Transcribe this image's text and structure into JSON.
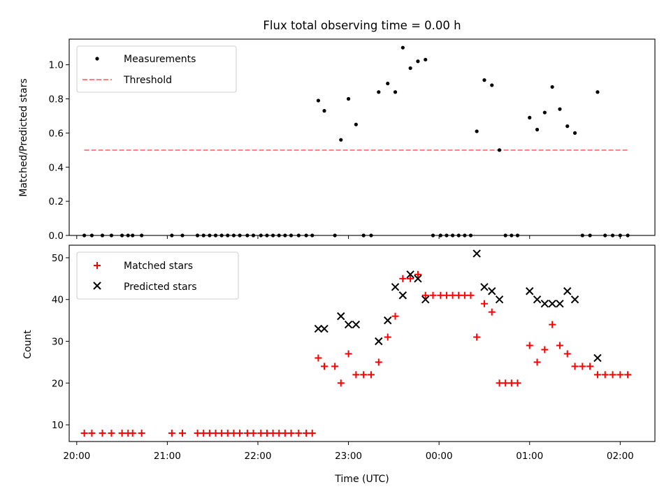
{
  "chart_data": [
    {
      "type": "scatter",
      "title": "Flux total observing time = 0.00 h",
      "xlabel": "",
      "ylabel": "Matched/Predicted stars",
      "ylim": [
        0,
        1.15
      ],
      "yticks": [
        "0.0",
        "0.2",
        "0.4",
        "0.6",
        "0.8",
        "1.0"
      ],
      "legend_position": "top-left",
      "series": [
        {
          "name": "Measurements",
          "color": "#000000",
          "marker": "dot",
          "points": [
            [
              "20:05",
              0
            ],
            [
              "20:10",
              0
            ],
            [
              "20:17",
              0
            ],
            [
              "20:23",
              0
            ],
            [
              "20:30",
              0
            ],
            [
              "20:34",
              0
            ],
            [
              "20:37",
              0
            ],
            [
              "20:43",
              0
            ],
            [
              "21:03",
              0
            ],
            [
              "21:10",
              0
            ],
            [
              "21:20",
              0
            ],
            [
              "21:24",
              0
            ],
            [
              "21:28",
              0
            ],
            [
              "21:32",
              0
            ],
            [
              "21:36",
              0
            ],
            [
              "21:40",
              0
            ],
            [
              "21:44",
              0
            ],
            [
              "21:48",
              0
            ],
            [
              "21:53",
              0
            ],
            [
              "21:57",
              0
            ],
            [
              "22:02",
              0
            ],
            [
              "22:06",
              0
            ],
            [
              "22:10",
              0
            ],
            [
              "22:14",
              0
            ],
            [
              "22:18",
              0
            ],
            [
              "22:22",
              0
            ],
            [
              "22:27",
              0
            ],
            [
              "22:32",
              0
            ],
            [
              "22:36",
              0
            ],
            [
              "22:40",
              0.79
            ],
            [
              "22:44",
              0.73
            ],
            [
              "22:51",
              0
            ],
            [
              "22:55",
              0.56
            ],
            [
              "23:00",
              0.8
            ],
            [
              "23:05",
              0.65
            ],
            [
              "23:10",
              0
            ],
            [
              "23:15",
              0
            ],
            [
              "23:20",
              0.84
            ],
            [
              "23:26",
              0.89
            ],
            [
              "23:31",
              0.84
            ],
            [
              "23:36",
              1.1
            ],
            [
              "23:41",
              0.98
            ],
            [
              "23:46",
              1.02
            ],
            [
              "23:51",
              1.03
            ],
            [
              "23:56",
              0
            ],
            [
              "00:01",
              0
            ],
            [
              "00:05",
              0
            ],
            [
              "00:09",
              0
            ],
            [
              "00:13",
              0
            ],
            [
              "00:17",
              0
            ],
            [
              "00:21",
              0
            ],
            [
              "00:25",
              0.61
            ],
            [
              "00:30",
              0.91
            ],
            [
              "00:35",
              0.88
            ],
            [
              "00:40",
              0.5
            ],
            [
              "00:44",
              0
            ],
            [
              "00:48",
              0
            ],
            [
              "00:52",
              0
            ],
            [
              "01:00",
              0.69
            ],
            [
              "01:05",
              0.62
            ],
            [
              "01:10",
              0.72
            ],
            [
              "01:15",
              0.87
            ],
            [
              "01:20",
              0.74
            ],
            [
              "01:25",
              0.64
            ],
            [
              "01:30",
              0.6
            ],
            [
              "01:35",
              0
            ],
            [
              "01:40",
              0
            ],
            [
              "01:45",
              0.84
            ],
            [
              "01:50",
              0
            ],
            [
              "01:55",
              0
            ],
            [
              "02:00",
              0
            ],
            [
              "02:05",
              0
            ]
          ]
        },
        {
          "name": "Threshold",
          "color": "#ff7f7f",
          "style": "dashed",
          "points": [
            [
              "20:05",
              0.5
            ],
            [
              "02:05",
              0.5
            ]
          ]
        }
      ]
    },
    {
      "type": "scatter",
      "title": "",
      "xlabel": "Time (UTC)",
      "ylabel": "Count",
      "ylim": [
        6,
        53
      ],
      "yticks": [
        "10",
        "20",
        "30",
        "40",
        "50"
      ],
      "xticks": [
        "20:00",
        "21:00",
        "22:00",
        "23:00",
        "00:00",
        "01:00",
        "02:00"
      ],
      "legend_position": "top-left",
      "series": [
        {
          "name": "Matched stars",
          "color": "#ff0000",
          "marker": "plus",
          "points": [
            [
              "20:05",
              8
            ],
            [
              "20:10",
              8
            ],
            [
              "20:17",
              8
            ],
            [
              "20:23",
              8
            ],
            [
              "20:30",
              8
            ],
            [
              "20:34",
              8
            ],
            [
              "20:37",
              8
            ],
            [
              "20:43",
              8
            ],
            [
              "21:03",
              8
            ],
            [
              "21:10",
              8
            ],
            [
              "21:20",
              8
            ],
            [
              "21:24",
              8
            ],
            [
              "21:28",
              8
            ],
            [
              "21:32",
              8
            ],
            [
              "21:36",
              8
            ],
            [
              "21:40",
              8
            ],
            [
              "21:44",
              8
            ],
            [
              "21:48",
              8
            ],
            [
              "21:53",
              8
            ],
            [
              "21:57",
              8
            ],
            [
              "22:02",
              8
            ],
            [
              "22:06",
              8
            ],
            [
              "22:10",
              8
            ],
            [
              "22:14",
              8
            ],
            [
              "22:18",
              8
            ],
            [
              "22:22",
              8
            ],
            [
              "22:27",
              8
            ],
            [
              "22:32",
              8
            ],
            [
              "22:36",
              8
            ],
            [
              "22:40",
              26
            ],
            [
              "22:44",
              24
            ],
            [
              "22:51",
              24
            ],
            [
              "22:55",
              20
            ],
            [
              "23:00",
              27
            ],
            [
              "23:05",
              22
            ],
            [
              "23:10",
              22
            ],
            [
              "23:15",
              22
            ],
            [
              "23:20",
              25
            ],
            [
              "23:26",
              31
            ],
            [
              "23:31",
              36
            ],
            [
              "23:36",
              45
            ],
            [
              "23:41",
              45
            ],
            [
              "23:46",
              46
            ],
            [
              "23:51",
              41
            ],
            [
              "23:56",
              41
            ],
            [
              "00:01",
              41
            ],
            [
              "00:05",
              41
            ],
            [
              "00:09",
              41
            ],
            [
              "00:13",
              41
            ],
            [
              "00:17",
              41
            ],
            [
              "00:21",
              41
            ],
            [
              "00:25",
              31
            ],
            [
              "00:30",
              39
            ],
            [
              "00:35",
              37
            ],
            [
              "00:40",
              20
            ],
            [
              "00:44",
              20
            ],
            [
              "00:48",
              20
            ],
            [
              "00:52",
              20
            ],
            [
              "01:00",
              29
            ],
            [
              "01:05",
              25
            ],
            [
              "01:10",
              28
            ],
            [
              "01:15",
              34
            ],
            [
              "01:20",
              29
            ],
            [
              "01:25",
              27
            ],
            [
              "01:30",
              24
            ],
            [
              "01:35",
              24
            ],
            [
              "01:40",
              24
            ],
            [
              "01:45",
              22
            ],
            [
              "01:50",
              22
            ],
            [
              "01:55",
              22
            ],
            [
              "02:00",
              22
            ],
            [
              "02:05",
              22
            ]
          ]
        },
        {
          "name": "Predicted stars",
          "color": "#000000",
          "marker": "x",
          "points": [
            [
              "22:40",
              33
            ],
            [
              "22:44",
              33
            ],
            [
              "22:55",
              36
            ],
            [
              "23:00",
              34
            ],
            [
              "23:05",
              34
            ],
            [
              "23:20",
              30
            ],
            [
              "23:26",
              35
            ],
            [
              "23:31",
              43
            ],
            [
              "23:36",
              41
            ],
            [
              "23:41",
              46
            ],
            [
              "23:46",
              45
            ],
            [
              "23:51",
              40
            ],
            [
              "00:25",
              51
            ],
            [
              "00:30",
              43
            ],
            [
              "00:35",
              42
            ],
            [
              "00:40",
              40
            ],
            [
              "01:00",
              42
            ],
            [
              "01:05",
              40
            ],
            [
              "01:10",
              39
            ],
            [
              "01:15",
              39
            ],
            [
              "01:20",
              39
            ],
            [
              "01:25",
              42
            ],
            [
              "01:30",
              40
            ],
            [
              "01:45",
              26
            ]
          ]
        }
      ]
    }
  ]
}
